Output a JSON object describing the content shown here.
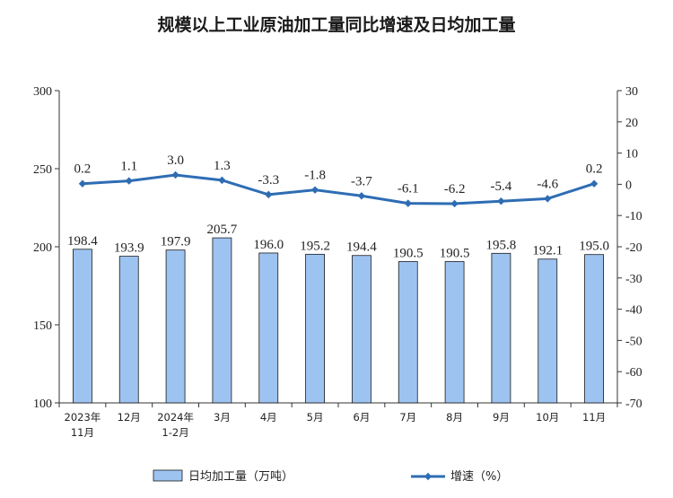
{
  "chart_data": {
    "type": "bar",
    "title": "规模以上工业原油加工量同比增速及日均加工量",
    "categories": [
      [
        "2023年",
        "11月"
      ],
      [
        "12月"
      ],
      [
        "2024年",
        "1-2月"
      ],
      [
        "3月"
      ],
      [
        "4月"
      ],
      [
        "5月"
      ],
      [
        "6月"
      ],
      [
        "7月"
      ],
      [
        "8月"
      ],
      [
        "9月"
      ],
      [
        "10月"
      ],
      [
        "11月"
      ]
    ],
    "series": [
      {
        "name": "日均加工量（万吨）",
        "type": "bar",
        "axis": "left",
        "values": [
          198.4,
          193.9,
          197.9,
          205.7,
          196.0,
          195.2,
          194.4,
          190.5,
          190.5,
          195.8,
          192.1,
          195.0
        ],
        "labels": [
          "198.4",
          "193.9",
          "197.9",
          "205.7",
          "196.0",
          "195.2",
          "194.4",
          "190.5",
          "190.5",
          "195.8",
          "192.1",
          "195.0"
        ]
      },
      {
        "name": "增速（%）",
        "type": "line",
        "axis": "right",
        "values": [
          0.2,
          1.1,
          3.0,
          1.3,
          -3.3,
          -1.8,
          -3.7,
          -6.1,
          -6.2,
          -5.4,
          -4.6,
          0.2
        ],
        "labels": [
          "0.2",
          "1.1",
          "3.0",
          "1.3",
          "-3.3",
          "-1.8",
          "-3.7",
          "-6.1",
          "-6.2",
          "-5.4",
          "-4.6",
          "0.2"
        ]
      }
    ],
    "y_left": {
      "min": 100,
      "max": 300,
      "ticks": [
        100,
        150,
        200,
        250,
        300
      ],
      "tick_labels": [
        "100",
        "150",
        "200",
        "250",
        "300"
      ]
    },
    "y_right": {
      "min": -70,
      "max": 30,
      "ticks": [
        -70,
        -60,
        -50,
        -40,
        -30,
        -20,
        -10,
        0,
        10,
        20,
        30
      ],
      "tick_labels": [
        "-70",
        "-60",
        "-50",
        "-40",
        "-30",
        "-20",
        "-10",
        "0",
        "10",
        "20",
        "30"
      ]
    },
    "grid": false,
    "legend": "bottom",
    "colors": {
      "bar_fill": "#9dc3f1",
      "bar_stroke": "#1a1a1a",
      "line": "#2e6db4",
      "axis": "#333333"
    }
  }
}
